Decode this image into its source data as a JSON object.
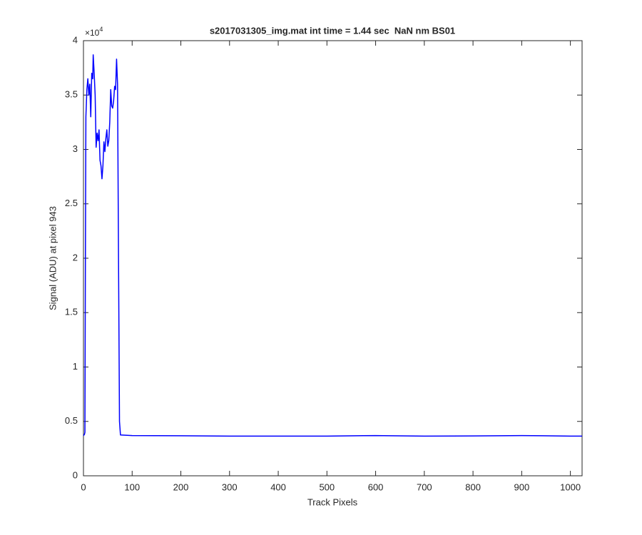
{
  "chart_data": {
    "type": "line",
    "title": "s2017031305_img.mat int time = 1.44 sec  NaN nm BS01",
    "xlabel": "Track Pixels",
    "ylabel": "Signal (ADU) at pixel 943",
    "y_multiplier": "×10",
    "y_multiplier_exponent": "4",
    "x": [
      0,
      2,
      3,
      4,
      5,
      7,
      9,
      11,
      13,
      15,
      17,
      19,
      20,
      22,
      24,
      26,
      28,
      30,
      32,
      34,
      36,
      38,
      40,
      42,
      44,
      46,
      48,
      50,
      52,
      54,
      56,
      58,
      60,
      62,
      64,
      66,
      68,
      70,
      72,
      74,
      76,
      100,
      200,
      300,
      400,
      500,
      600,
      700,
      800,
      900,
      1000,
      1024
    ],
    "series": [
      {
        "color": "#0000ff",
        "values": [
          3700,
          3800,
          4000,
          20000,
          33000,
          35500,
          36500,
          35000,
          36000,
          33000,
          37000,
          36500,
          38700,
          37000,
          35000,
          30200,
          31500,
          30800,
          31800,
          29000,
          28500,
          27300,
          28500,
          30700,
          29800,
          31000,
          31800,
          30300,
          30800,
          32500,
          35500,
          34000,
          33800,
          34500,
          35800,
          35500,
          38300,
          36000,
          20000,
          5000,
          3750,
          3700,
          3680,
          3650,
          3650,
          3650,
          3700,
          3650,
          3660,
          3700,
          3650,
          3650
        ]
      }
    ],
    "xlim": [
      0,
      1024
    ],
    "ylim": [
      0,
      40000
    ],
    "xticks": [
      0,
      100,
      200,
      300,
      400,
      500,
      600,
      700,
      800,
      900,
      1000
    ],
    "yticks": [
      0,
      {
        "value": 5000,
        "label": "0.5"
      },
      {
        "value": 10000,
        "label": "1"
      },
      {
        "value": 15000,
        "label": "1.5"
      },
      {
        "value": 20000,
        "label": "2"
      },
      {
        "value": 25000,
        "label": "2.5"
      },
      {
        "value": 30000,
        "label": "3"
      },
      {
        "value": 35000,
        "label": "3.5"
      },
      {
        "value": 40000,
        "label": "4"
      }
    ],
    "grid": false
  }
}
